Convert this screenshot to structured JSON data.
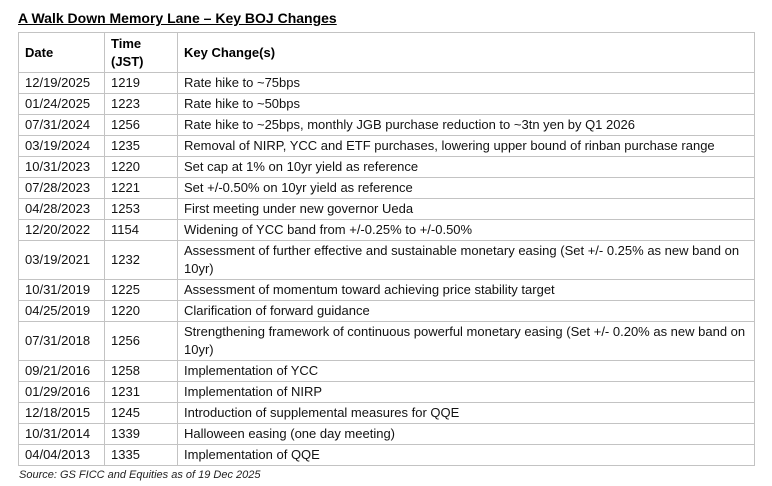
{
  "title": "A Walk Down Memory Lane – Key BOJ Changes",
  "table": {
    "columns": [
      "Date",
      "Time (JST)",
      "Key Change(s)"
    ],
    "rows": [
      {
        "date": "12/19/2025",
        "time": "1219",
        "change": "Rate hike to ~75bps"
      },
      {
        "date": "01/24/2025",
        "time": "1223",
        "change": "Rate hike to ~50bps"
      },
      {
        "date": "07/31/2024",
        "time": "1256",
        "change": "Rate hike to ~25bps, monthly JGB purchase reduction to ~3tn yen by Q1 2026"
      },
      {
        "date": "03/19/2024",
        "time": "1235",
        "change": "Removal of NIRP, YCC and ETF purchases, lowering upper bound of rinban purchase range"
      },
      {
        "date": "10/31/2023",
        "time": "1220",
        "change": "Set cap at 1% on 10yr yield as reference"
      },
      {
        "date": "07/28/2023",
        "time": "1221",
        "change": "Set +/-0.50% on 10yr yield as reference"
      },
      {
        "date": "04/28/2023",
        "time": "1253",
        "change": "First meeting under new governor Ueda"
      },
      {
        "date": "12/20/2022",
        "time": "1154",
        "change": "Widening of YCC band from +/-0.25% to +/-0.50%"
      },
      {
        "date": "03/19/2021",
        "time": "1232",
        "change": "Assessment of further effective and sustainable monetary easing (Set +/- 0.25% as new band on 10yr)"
      },
      {
        "date": "10/31/2019",
        "time": "1225",
        "change": "Assessment of momentum toward achieving price stability target"
      },
      {
        "date": "04/25/2019",
        "time": "1220",
        "change": "Clarification of forward guidance"
      },
      {
        "date": "07/31/2018",
        "time": "1256",
        "change": "Strengthening framework of continuous powerful monetary easing (Set +/- 0.20% as new band on 10yr)"
      },
      {
        "date": "09/21/2016",
        "time": "1258",
        "change": "Implementation of YCC"
      },
      {
        "date": "01/29/2016",
        "time": "1231",
        "change": "Implementation of NIRP"
      },
      {
        "date": "12/18/2015",
        "time": "1245",
        "change": "Introduction of supplemental measures for QQE"
      },
      {
        "date": "10/31/2014",
        "time": "1339",
        "change": "Halloween easing (one day meeting)"
      },
      {
        "date": "04/04/2013",
        "time": "1335",
        "change": "Implementation of QQE"
      }
    ]
  },
  "source": "Source: GS FICC and Equities as of 19 Dec 2025"
}
